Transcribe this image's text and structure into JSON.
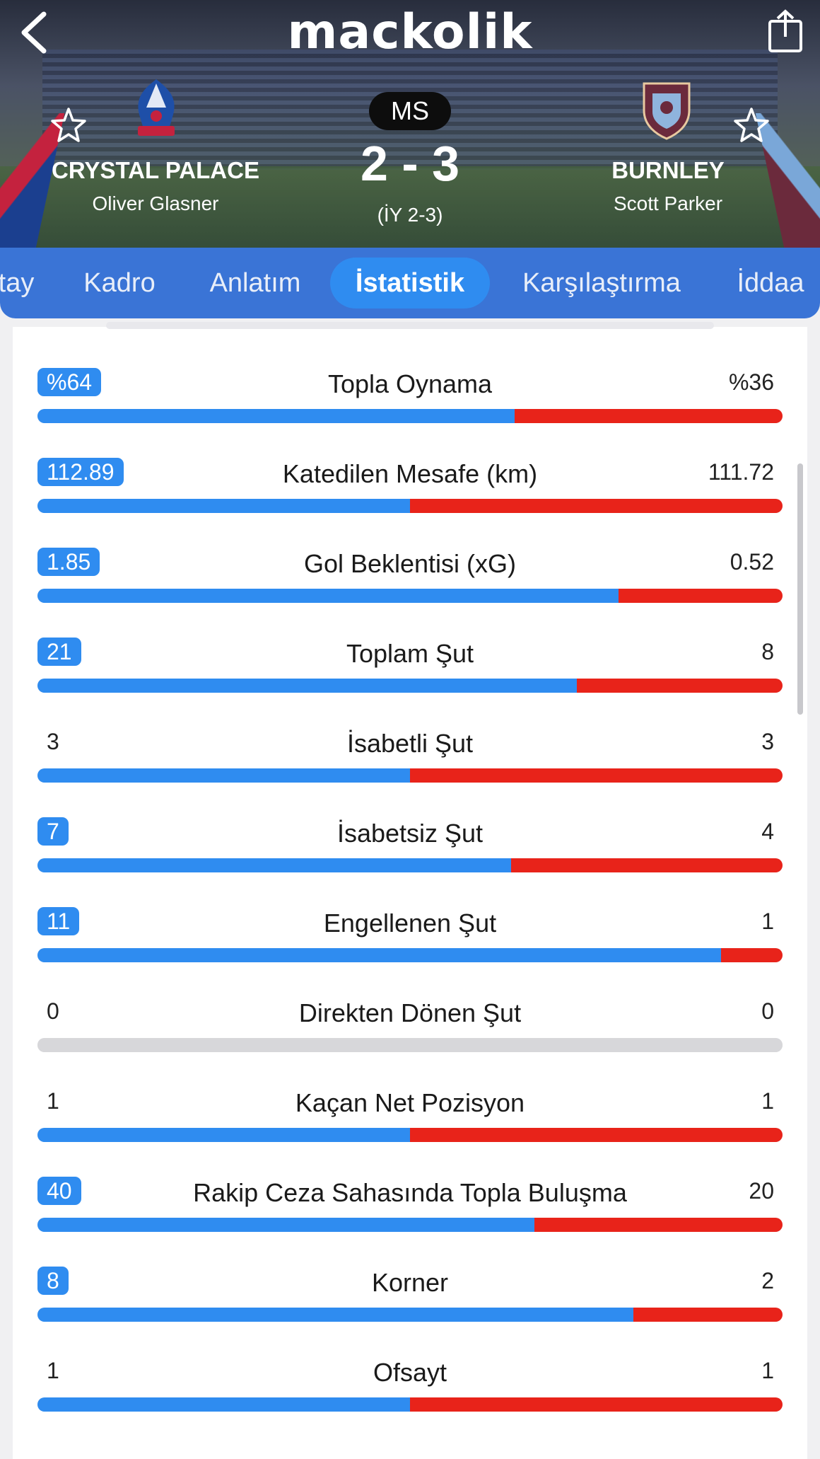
{
  "header": {
    "brand": "mackolik",
    "status": "MS",
    "score": "2 - 3",
    "halftime": "(İY 2-3)",
    "home": {
      "name": "CRYSTAL PALACE",
      "coach": "Oliver Glasner"
    },
    "away": {
      "name": "BURNLEY",
      "coach": "Scott Parker"
    }
  },
  "tabs": [
    {
      "label": "tay"
    },
    {
      "label": "Kadro"
    },
    {
      "label": "Anlatım"
    },
    {
      "label": "İstatistik",
      "active": true
    },
    {
      "label": "Karşılaştırma"
    },
    {
      "label": "İddaa"
    }
  ],
  "stats": [
    {
      "label": "Topla Oynama",
      "home": "%64",
      "away": "%36",
      "home_share": 0.64,
      "home_leads": true
    },
    {
      "label": "Katedilen Mesafe (km)",
      "home": "112.89",
      "away": "111.72",
      "home_share": 0.5,
      "home_leads": true
    },
    {
      "label": "Gol Beklentisi (xG)",
      "home": "1.85",
      "away": "0.52",
      "home_share": 0.78,
      "home_leads": true
    },
    {
      "label": "Toplam Şut",
      "home": "21",
      "away": "8",
      "home_share": 0.724,
      "home_leads": true
    },
    {
      "label": "İsabetli Şut",
      "home": "3",
      "away": "3",
      "home_share": 0.5,
      "home_leads": false
    },
    {
      "label": "İsabetsiz Şut",
      "home": "7",
      "away": "4",
      "home_share": 0.636,
      "home_leads": true
    },
    {
      "label": "Engellenen Şut",
      "home": "11",
      "away": "1",
      "home_share": 0.917,
      "home_leads": true
    },
    {
      "label": "Direkten Dönen Şut",
      "home": "0",
      "away": "0",
      "home_share": 0.5,
      "home_leads": false,
      "empty": true
    },
    {
      "label": "Kaçan Net Pozisyon",
      "home": "1",
      "away": "1",
      "home_share": 0.5,
      "home_leads": false
    },
    {
      "label": "Rakip Ceza Sahasında Topla Buluşma",
      "home": "40",
      "away": "20",
      "home_share": 0.667,
      "home_leads": true
    },
    {
      "label": "Korner",
      "home": "8",
      "away": "2",
      "home_share": 0.8,
      "home_leads": true
    },
    {
      "label": "Ofsayt",
      "home": "1",
      "away": "1",
      "home_share": 0.5,
      "home_leads": false
    }
  ],
  "colors": {
    "home": "#2f8cf0",
    "away": "#e8231a",
    "tabbar": "#3a74d6"
  }
}
